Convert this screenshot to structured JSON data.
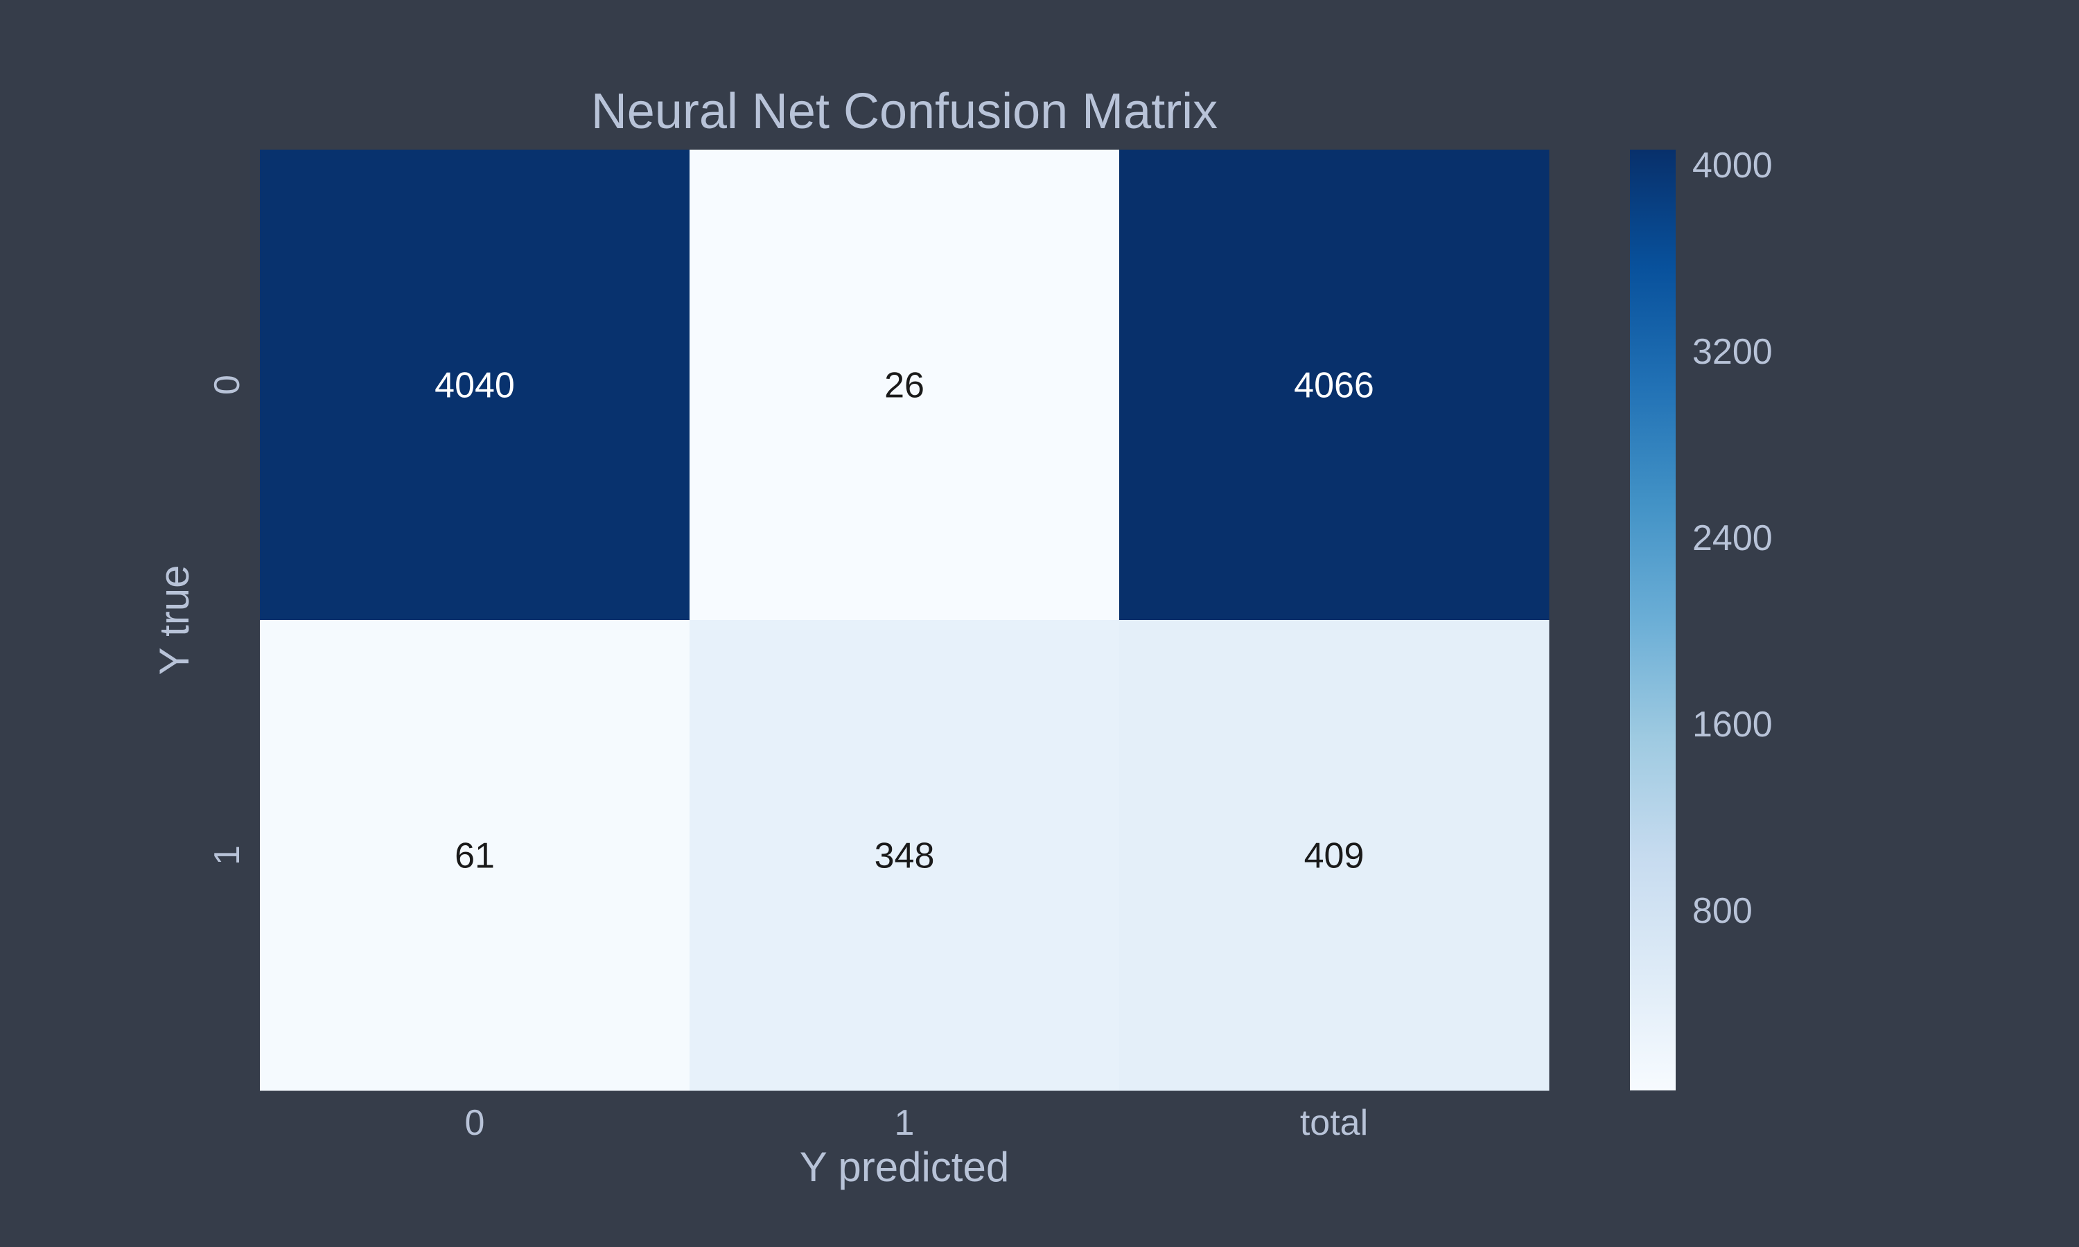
{
  "chart_data": {
    "type": "heatmap",
    "title": "Neural Net Confusion Matrix",
    "xlabel": "Y predicted",
    "ylabel": "Y true",
    "x_categories": [
      "0",
      "1",
      "total"
    ],
    "y_categories": [
      "0",
      "1"
    ],
    "values": [
      [
        4040,
        26,
        4066
      ],
      [
        61,
        348,
        409
      ]
    ],
    "colormap": "Blues",
    "colorbar": {
      "min": 26,
      "max": 4066,
      "ticks": [
        4000,
        3200,
        2400,
        1600,
        800
      ]
    },
    "grid": false
  },
  "colors": {
    "background": "#363d4a",
    "text": "#b8c3d8",
    "cell_text_dark": "#1a1a1a",
    "cell_text_light": "#ffffff"
  }
}
